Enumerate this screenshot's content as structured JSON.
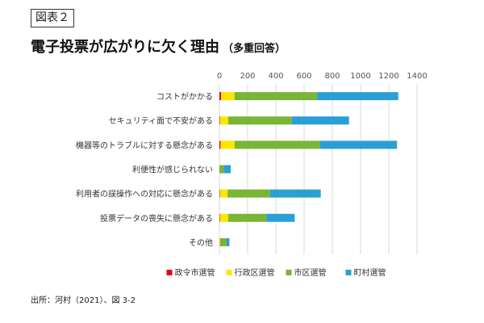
{
  "figure_label": "図表２",
  "title": "電子投票が広がりに欠く理由",
  "subtitle": "（多重回答）",
  "source": "出所：河村（2021）、図 3-2",
  "colors": {
    "政令市選管": "#e8000d",
    "行政区選管": "#ffe600",
    "市区選管": "#7ab536",
    "町村選管": "#2a9fd6",
    "gridline": "#d9d9d9",
    "axis_text": "#555555"
  },
  "chart_data": {
    "type": "bar",
    "orientation": "horizontal",
    "stacked": true,
    "categories": [
      "コストがかかる",
      "セキュリティ面で不安がある",
      "機器等のトラブルに対する懸念がある",
      "利便性が感じられない",
      "利用者の誤操作への対応に懸念がある",
      "投票データの喪失に懸念がある",
      "その他"
    ],
    "series": [
      {
        "name": "政令市選管",
        "values": [
          12,
          3,
          8,
          0,
          3,
          3,
          1
        ]
      },
      {
        "name": "行政区選管",
        "values": [
          95,
          60,
          100,
          0,
          55,
          60,
          5
        ]
      },
      {
        "name": "市区選管",
        "values": [
          585,
          450,
          605,
          30,
          300,
          270,
          45
        ]
      },
      {
        "name": "町村選管",
        "values": [
          575,
          405,
          545,
          50,
          360,
          200,
          20
        ]
      }
    ],
    "xlim": [
      0,
      1400
    ],
    "xticks": [
      0,
      200,
      400,
      600,
      800,
      1000,
      1200,
      1400
    ],
    "grid": true,
    "legend_position": "bottom",
    "xlabel": "",
    "ylabel": ""
  }
}
